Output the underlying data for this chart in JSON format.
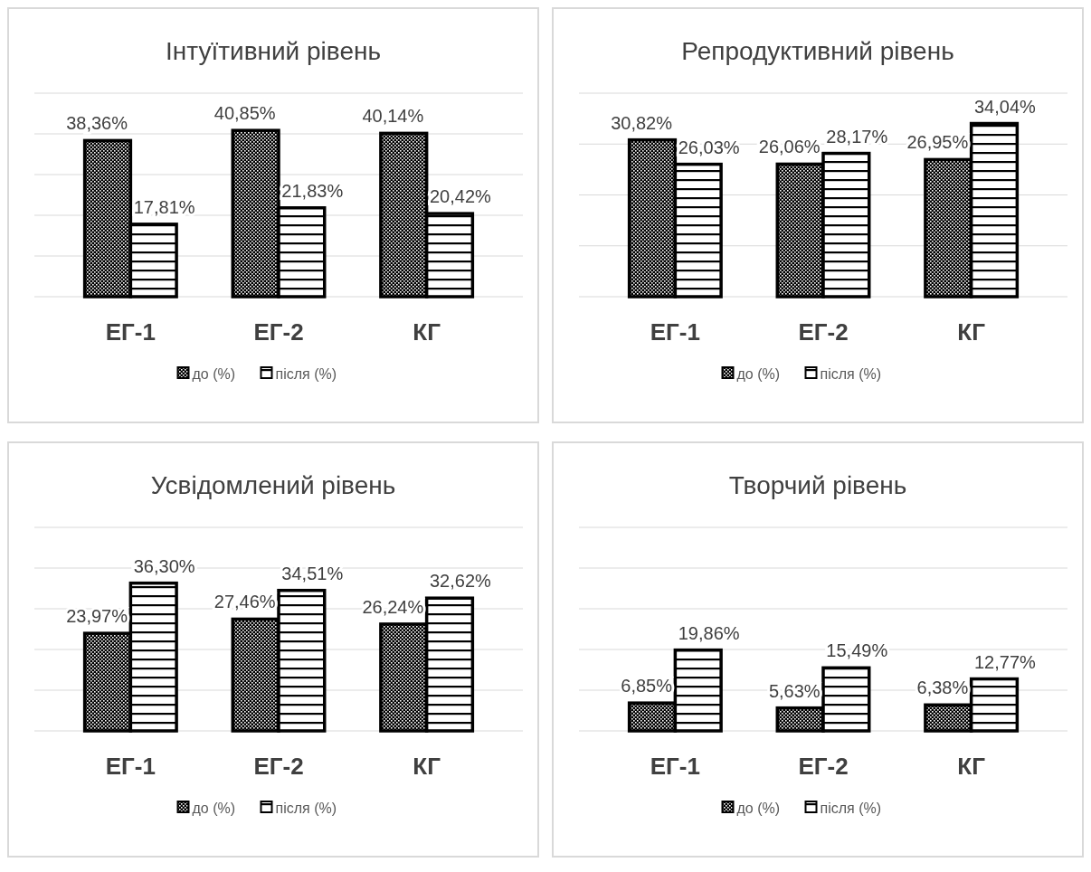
{
  "chart_data": [
    {
      "type": "bar",
      "title": "Інтуїтивний рівень",
      "categories": [
        "ЕГ-1",
        "ЕГ-2",
        "КГ"
      ],
      "series": [
        {
          "name": "до (%)",
          "color": "#000000",
          "values": [
            38.36,
            40.85,
            40.14
          ],
          "value_labels": [
            "38,36%",
            "40,85%",
            "40,14%"
          ]
        },
        {
          "name": "після (%)",
          "color": "#000000",
          "values": [
            17.81,
            21.83,
            20.42
          ],
          "value_labels": [
            "17,81%",
            "21,83%",
            "20,42%"
          ]
        }
      ],
      "ylim": [
        0,
        50
      ],
      "yticks": [
        {
          "value": 0,
          "label": null
        },
        {
          "value": 10,
          "label": null
        },
        {
          "value": 20,
          "label": null
        },
        {
          "value": 30,
          "label": null
        },
        {
          "value": 40,
          "label": null
        },
        {
          "value": 50,
          "label": null
        }
      ],
      "grid": "y",
      "legend": "bottom",
      "tick_labels": "x"
    },
    {
      "type": "bar",
      "title": "Репродуктивний рівень",
      "categories": [
        "ЕГ-1",
        "ЕГ-2",
        "КГ"
      ],
      "series": [
        {
          "name": "до (%)",
          "color": "#000000",
          "values": [
            30.82,
            26.06,
            26.95
          ],
          "value_labels": [
            "30,82%",
            "26,06%",
            "26,95%"
          ]
        },
        {
          "name": "після (%)",
          "color": "#000000",
          "values": [
            26.03,
            28.17,
            34.04
          ],
          "value_labels": [
            "26,03%",
            "28,17%",
            "34,04%"
          ]
        }
      ],
      "ylim": [
        0,
        40
      ],
      "yticks": [
        {
          "value": 0,
          "label": null
        },
        {
          "value": 10,
          "label": null
        },
        {
          "value": 20,
          "label": null
        },
        {
          "value": 30,
          "label": null
        },
        {
          "value": 40,
          "label": null
        }
      ],
      "grid": "y",
      "legend": "bottom",
      "tick_labels": "x"
    },
    {
      "type": "bar",
      "title": "Усвідомлений рівень",
      "categories": [
        "ЕГ-1",
        "ЕГ-2",
        "КГ"
      ],
      "series": [
        {
          "name": "до (%)",
          "color": "#000000",
          "values": [
            23.97,
            27.46,
            26.24
          ],
          "value_labels": [
            "23,97%",
            "27,46%",
            "26,24%"
          ]
        },
        {
          "name": "після (%)",
          "color": "#000000",
          "values": [
            36.3,
            34.51,
            32.62
          ],
          "value_labels": [
            "36,30%",
            "34,51%",
            "32,62%"
          ]
        }
      ],
      "ylim": [
        0,
        50
      ],
      "yticks": [
        {
          "value": 0,
          "label": null
        },
        {
          "value": 10,
          "label": null
        },
        {
          "value": 20,
          "label": null
        },
        {
          "value": 30,
          "label": null
        },
        {
          "value": 40,
          "label": null
        },
        {
          "value": 50,
          "label": null
        }
      ],
      "grid": "y",
      "legend": "bottom",
      "tick_labels": "x"
    },
    {
      "type": "bar",
      "title": "Творчий рівень",
      "categories": [
        "ЕГ-1",
        "ЕГ-2",
        "КГ"
      ],
      "series": [
        {
          "name": "до (%)",
          "color": "#000000",
          "values": [
            6.85,
            5.63,
            6.38
          ],
          "value_labels": [
            "6,85%",
            "5,63%",
            "6,38%"
          ]
        },
        {
          "name": "після (%)",
          "color": "#000000",
          "values": [
            19.86,
            15.49,
            12.77
          ],
          "value_labels": [
            "19,86%",
            "15,49%",
            "12,77%"
          ]
        }
      ],
      "ylim": [
        0,
        50
      ],
      "yticks": [
        {
          "value": 0,
          "label": null
        },
        {
          "value": 10,
          "label": null
        },
        {
          "value": 20,
          "label": null
        },
        {
          "value": 30,
          "label": null
        },
        {
          "value": 40,
          "label": null
        },
        {
          "value": 50,
          "label": null
        }
      ],
      "grid": "y",
      "legend": "bottom",
      "tick_labels": "x"
    }
  ]
}
